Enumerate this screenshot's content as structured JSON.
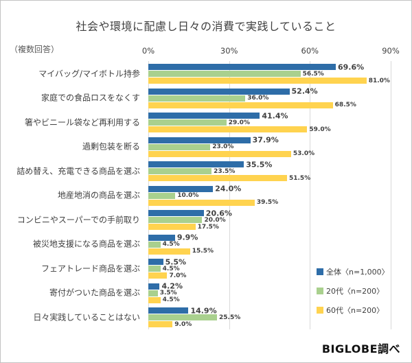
{
  "title": "社会や環境に配慮し日々の消費で実践していること",
  "note": "（複数回答）",
  "credit": "BIGLOBE調べ",
  "chart_data": {
    "type": "bar",
    "orientation": "horizontal",
    "title": "社会や環境に配慮し日々の消費で実践していること",
    "subtitle": "（複数回答）",
    "categories": [
      "マイバッグ/マイボトル持参",
      "家庭での食品ロスをなくす",
      "箸やビニール袋など再利用する",
      "過剰包装を断る",
      "詰め替え、充電できる商品を選ぶ",
      "地産地消の商品を選ぶ",
      "コンビニやスーパーでの手前取り",
      "被災地支援になる商品を選ぶ",
      "フェアトレード商品を選ぶ",
      "寄付がついた商品を選ぶ",
      "日々実践していることはない"
    ],
    "series": [
      {
        "name": "全体〈n=1,000〉",
        "color": "#2e6fa8",
        "values": [
          69.6,
          52.4,
          41.4,
          37.9,
          35.5,
          24.0,
          20.6,
          9.9,
          5.5,
          4.2,
          14.9
        ]
      },
      {
        "name": "20代〈n=200〉",
        "color": "#a9d08e",
        "values": [
          56.5,
          36.0,
          29.0,
          23.0,
          23.5,
          10.0,
          20.0,
          4.5,
          4.5,
          3.5,
          25.5
        ]
      },
      {
        "name": "60代〈n=200〉",
        "color": "#ffd34f",
        "values": [
          81.0,
          68.5,
          59.0,
          53.0,
          51.5,
          39.5,
          17.5,
          15.5,
          7.0,
          4.5,
          9.0
        ]
      }
    ],
    "series_colors": [
      "#2e6da8",
      "#a9d08e",
      "#ffd34f"
    ],
    "x_ticks": [
      "0%",
      "30%",
      "60%",
      "90%"
    ],
    "x_tick_values": [
      0,
      30,
      60,
      90
    ],
    "xlim": [
      0,
      90
    ],
    "grid": true,
    "value_label_format": "one-decimal-percent",
    "legend_position": "right-bottom"
  }
}
